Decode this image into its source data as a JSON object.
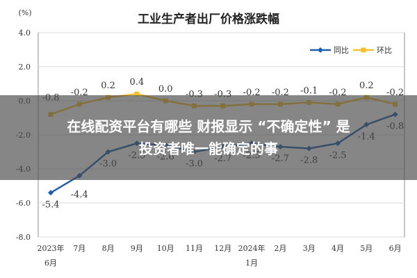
{
  "chart_data": {
    "type": "line",
    "title": "工业生产者出厂价格涨跌幅",
    "ylabel": "(%)",
    "xlabel": "",
    "ylim": [
      -8.0,
      4.0
    ],
    "yticks": [
      "4.0",
      "2.0",
      "0.0",
      "-2.0",
      "-4.0",
      "-6.0",
      "-8.0"
    ],
    "ytick_values": [
      4,
      2,
      0,
      -2,
      -4,
      -6,
      -8
    ],
    "grid": true,
    "legend_position": "top-right",
    "categories": [
      [
        "2023年",
        "6月"
      ],
      [
        "7月"
      ],
      [
        "8月"
      ],
      [
        "9月"
      ],
      [
        "10月"
      ],
      [
        "11月"
      ],
      [
        "12月"
      ],
      [
        "2024年",
        "1月"
      ],
      [
        "2月"
      ],
      [
        "3月"
      ],
      [
        "4月"
      ],
      [
        "5月"
      ],
      [
        "6月"
      ]
    ],
    "series": [
      {
        "name": "同比",
        "color": "#1f5fa8",
        "values": [
          -5.4,
          -4.4,
          -3.0,
          -2.5,
          -2.6,
          -3.0,
          -2.7,
          -2.5,
          -2.7,
          -2.8,
          -2.5,
          -1.4,
          -0.8
        ],
        "labels": [
          "-5.4",
          "-4.4",
          "-3.0",
          "-2.5",
          "-2.6",
          "-3.0",
          "-2.7",
          "-2.5",
          "-2.7",
          "-2.8",
          "-2.5",
          "-1.4",
          "-0.8"
        ]
      },
      {
        "name": "环比",
        "color": "#f2c12e",
        "values": [
          -0.8,
          -0.2,
          0.2,
          0.4,
          0.0,
          -0.3,
          -0.3,
          -0.2,
          -0.2,
          -0.1,
          -0.2,
          0.2,
          -0.2
        ],
        "labels": [
          "-0.8",
          "-0.2",
          "0.2",
          "0.4",
          "0.0",
          "-0.3",
          "-0.3",
          "-0.2",
          "-0.2",
          "-0.1",
          "-0.2",
          "0.2",
          "-0.2"
        ]
      }
    ]
  },
  "caption": {
    "line1": "在线配资平台有哪些 财报显示 “不确定性” 是",
    "line2": "投资者唯一能确定的事",
    "background": "#484848"
  }
}
